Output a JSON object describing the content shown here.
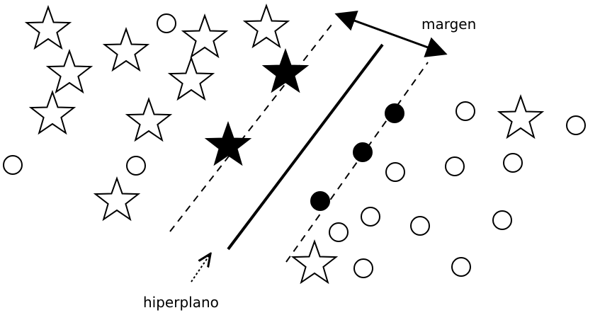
{
  "labels": {
    "margin": "margen",
    "hyperplane": "hiperplano"
  },
  "colors": {
    "ink": "#000000",
    "paper": "#ffffff"
  },
  "icons": {
    "class_a": "star-icon",
    "class_b": "circle-icon"
  }
}
